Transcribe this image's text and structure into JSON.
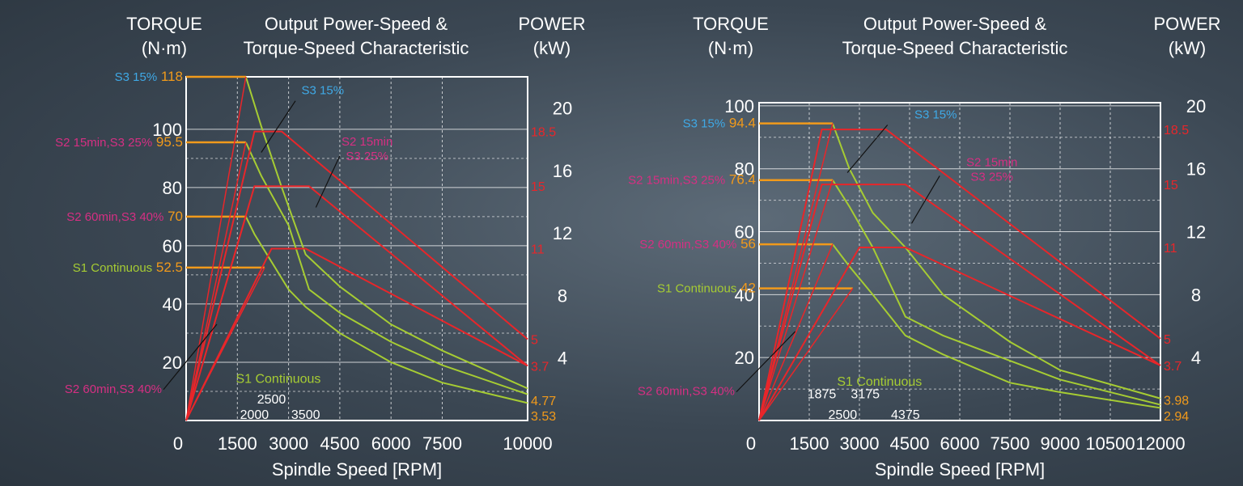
{
  "colors": {
    "white": "#ffffff",
    "green": "#a6cc33",
    "red": "#e8262a",
    "orange": "#f19a1b",
    "blue": "#3fa9e6",
    "magenta": "#d62f83"
  },
  "chart_data": [
    {
      "type": "line",
      "title_line1": "Output Power-Speed &",
      "title_line2": "Torque-Speed Characteristic",
      "left_axis_title_line1": "TORQUE",
      "left_axis_title_line2": "(N·m)",
      "right_axis_title_line1": "POWER",
      "right_axis_title_line2": "(kW)",
      "xlabel": "Spindle Speed [RPM]",
      "xlim": [
        0,
        10000
      ],
      "x_ticks": [
        "0",
        "1500",
        "3000",
        "4500",
        "6000",
        "7500",
        "10000"
      ],
      "x_tick_values": [
        0,
        1500,
        3000,
        4500,
        6000,
        7500,
        10000
      ],
      "torque_ticks": [
        "20",
        "40",
        "60",
        "80",
        "100"
      ],
      "torque_tick_values": [
        20,
        40,
        60,
        80,
        100
      ],
      "power_ticks": [
        "4",
        "8",
        "12",
        "16",
        "20"
      ],
      "power_tick_values": [
        4,
        8,
        12,
        16,
        20
      ],
      "torque_labels": [
        {
          "mode": "S3 15%",
          "value": "118",
          "torque": 118
        },
        {
          "mode": "S2 15min,S3 25%",
          "value": "95.5",
          "torque": 95.5
        },
        {
          "mode": "S2 60min,S3 40%",
          "value": "70",
          "torque": 70
        },
        {
          "mode": "S1 Continuous",
          "value": "52.5",
          "torque": 52.5
        }
      ],
      "power_labels": [
        {
          "text": "18.5",
          "power": 18.5,
          "color": "red"
        },
        {
          "text": "15",
          "power": 15,
          "color": "red"
        },
        {
          "text": "11",
          "power": 11,
          "color": "red"
        },
        {
          "text": "5",
          "power": 5.2,
          "color": "red"
        },
        {
          "text": "3.7",
          "power": 3.5,
          "color": "red"
        },
        {
          "text": "4.77",
          "power": 1.3,
          "color": "orange"
        },
        {
          "text": "3.53",
          "power": 0.3,
          "color": "orange"
        }
      ],
      "annotations": {
        "s3_15": "S3 15%",
        "s2_15_line1": "S2 15min",
        "s2_15_line2": "S3 25%",
        "s2_60": "S2 60min,S3 40%",
        "s1": "S1 Continuous",
        "speed_top": "2500",
        "speed_bottom_a": "2000",
        "speed_bottom_b": "3500"
      },
      "power_series": [
        {
          "mode": "S3 15%",
          "points": [
            [
              0,
              0
            ],
            [
              2000,
              18.5
            ],
            [
              2800,
              18.5
            ],
            [
              10000,
              5.2
            ]
          ]
        },
        {
          "mode": "S2 15min,S3 25%",
          "points": [
            [
              0,
              0
            ],
            [
              2000,
              15
            ],
            [
              3600,
              15
            ],
            [
              10000,
              3.5
            ]
          ]
        },
        {
          "mode": "S1 Continuous",
          "points": [
            [
              0,
              0
            ],
            [
              2500,
              11
            ],
            [
              3500,
              11
            ],
            [
              10000,
              3.5
            ]
          ]
        }
      ],
      "torque_series": [
        {
          "mode": "S3 15%",
          "points": [
            [
              0,
              118
            ],
            [
              1750,
              118
            ],
            [
              2200,
              101
            ],
            [
              2800,
              80
            ],
            [
              3500,
              57
            ],
            [
              4500,
              46
            ],
            [
              6000,
              33
            ],
            [
              7500,
              24
            ],
            [
              10000,
              11
            ]
          ]
        },
        {
          "mode": "S2 15min,S3 25%",
          "points": [
            [
              0,
              95.5
            ],
            [
              1750,
              95.5
            ],
            [
              2200,
              84
            ],
            [
              3000,
              67
            ],
            [
              3600,
              45
            ],
            [
              4500,
              37
            ],
            [
              6000,
              27
            ],
            [
              7500,
              19
            ],
            [
              10000,
              9
            ]
          ]
        },
        {
          "mode": "S2 60min,S3 40%",
          "points": [
            [
              0,
              70
            ],
            [
              1750,
              70
            ],
            [
              2000,
              64
            ],
            [
              3000,
              45
            ],
            [
              3500,
              39
            ],
            [
              4500,
              30
            ],
            [
              6000,
              20
            ],
            [
              7500,
              13
            ],
            [
              10000,
              6
            ]
          ]
        },
        {
          "mode": "S1 Continuous",
          "points": [
            [
              0,
              52.5
            ],
            [
              2300,
              52.5
            ]
          ]
        }
      ],
      "torque_max": 118,
      "power_max": 22
    },
    {
      "type": "line",
      "title_line1": "Output Power-Speed &",
      "title_line2": "Torque-Speed Characteristic",
      "left_axis_title_line1": "TORQUE",
      "left_axis_title_line2": "(N·m)",
      "right_axis_title_line1": "POWER",
      "right_axis_title_line2": "(kW)",
      "xlabel": "Spindle Speed [RPM]",
      "xlim": [
        0,
        12000
      ],
      "x_ticks": [
        "0",
        "1500",
        "3000",
        "4500",
        "6000",
        "7500",
        "9000",
        "10500",
        "12000"
      ],
      "x_tick_values": [
        0,
        1500,
        3000,
        4500,
        6000,
        7500,
        9000,
        10500,
        12000
      ],
      "torque_ticks": [
        "20",
        "40",
        "60",
        "80",
        "100"
      ],
      "torque_tick_values": [
        20,
        40,
        60,
        80,
        100
      ],
      "power_ticks": [
        "4",
        "8",
        "12",
        "16",
        "20"
      ],
      "power_tick_values": [
        4,
        8,
        12,
        16,
        20
      ],
      "torque_labels": [
        {
          "mode": "S3 15%",
          "value": "94.4",
          "torque": 94.4
        },
        {
          "mode": "S2 15min,S3 25%",
          "value": "76.4",
          "torque": 76.4
        },
        {
          "mode": "S2 60min,S3 40%",
          "value": "56",
          "torque": 56
        },
        {
          "mode": "S1 Continuous",
          "value": "42",
          "torque": 42
        }
      ],
      "power_labels": [
        {
          "text": "18.5",
          "power": 18.5,
          "color": "red"
        },
        {
          "text": "15",
          "power": 15,
          "color": "red"
        },
        {
          "text": "11",
          "power": 11,
          "color": "red"
        },
        {
          "text": "5",
          "power": 5.2,
          "color": "red"
        },
        {
          "text": "3.7",
          "power": 3.5,
          "color": "red"
        },
        {
          "text": "3.98",
          "power": 1.3,
          "color": "orange"
        },
        {
          "text": "2.94",
          "power": 0.3,
          "color": "orange"
        }
      ],
      "annotations": {
        "s3_15": "S3 15%",
        "s2_15_line1": "S2 15min",
        "s2_15_line2": "S3 25%",
        "s2_60": "S2 60min,S3 40%",
        "s1": "S1 Continuous",
        "speed_top_a": "1875",
        "speed_top_b": "3175",
        "speed_bottom_a": "2500",
        "speed_bottom_b": "4375"
      },
      "power_series": [
        {
          "mode": "S3 15%",
          "points": [
            [
              0,
              0
            ],
            [
              1875,
              18.5
            ],
            [
              3800,
              18.5
            ],
            [
              12000,
              5.2
            ]
          ]
        },
        {
          "mode": "S2 15min,S3 25%",
          "points": [
            [
              0,
              0
            ],
            [
              1875,
              15
            ],
            [
              4375,
              15
            ],
            [
              12000,
              3.5
            ]
          ]
        },
        {
          "mode": "S1 Continuous",
          "points": [
            [
              0,
              0
            ],
            [
              3000,
              11
            ],
            [
              4375,
              11
            ],
            [
              12000,
              3.5
            ]
          ]
        }
      ],
      "torque_series": [
        {
          "mode": "S3 15%",
          "points": [
            [
              0,
              94.4
            ],
            [
              2200,
              94.4
            ],
            [
              2700,
              80
            ],
            [
              3400,
              66
            ],
            [
              4375,
              55
            ],
            [
              5500,
              40
            ],
            [
              7500,
              25
            ],
            [
              9000,
              16
            ],
            [
              12000,
              7
            ]
          ]
        },
        {
          "mode": "S2 15min,S3 25%",
          "points": [
            [
              0,
              76.4
            ],
            [
              2200,
              76.4
            ],
            [
              2700,
              68
            ],
            [
              3400,
              55
            ],
            [
              4375,
              33
            ],
            [
              5500,
              27
            ],
            [
              7500,
              19
            ],
            [
              9000,
              13
            ],
            [
              12000,
              5
            ]
          ]
        },
        {
          "mode": "S2 60min,S3 40%",
          "points": [
            [
              0,
              56
            ],
            [
              2200,
              56
            ],
            [
              2700,
              49
            ],
            [
              3400,
              40
            ],
            [
              4375,
              27
            ],
            [
              5500,
              21
            ],
            [
              7500,
              12
            ],
            [
              9000,
              9
            ],
            [
              12000,
              4
            ]
          ]
        },
        {
          "mode": "S1 Continuous",
          "points": [
            [
              0,
              42
            ],
            [
              2800,
              42
            ]
          ]
        }
      ],
      "torque_max": 101,
      "power_max": 20.2
    }
  ]
}
